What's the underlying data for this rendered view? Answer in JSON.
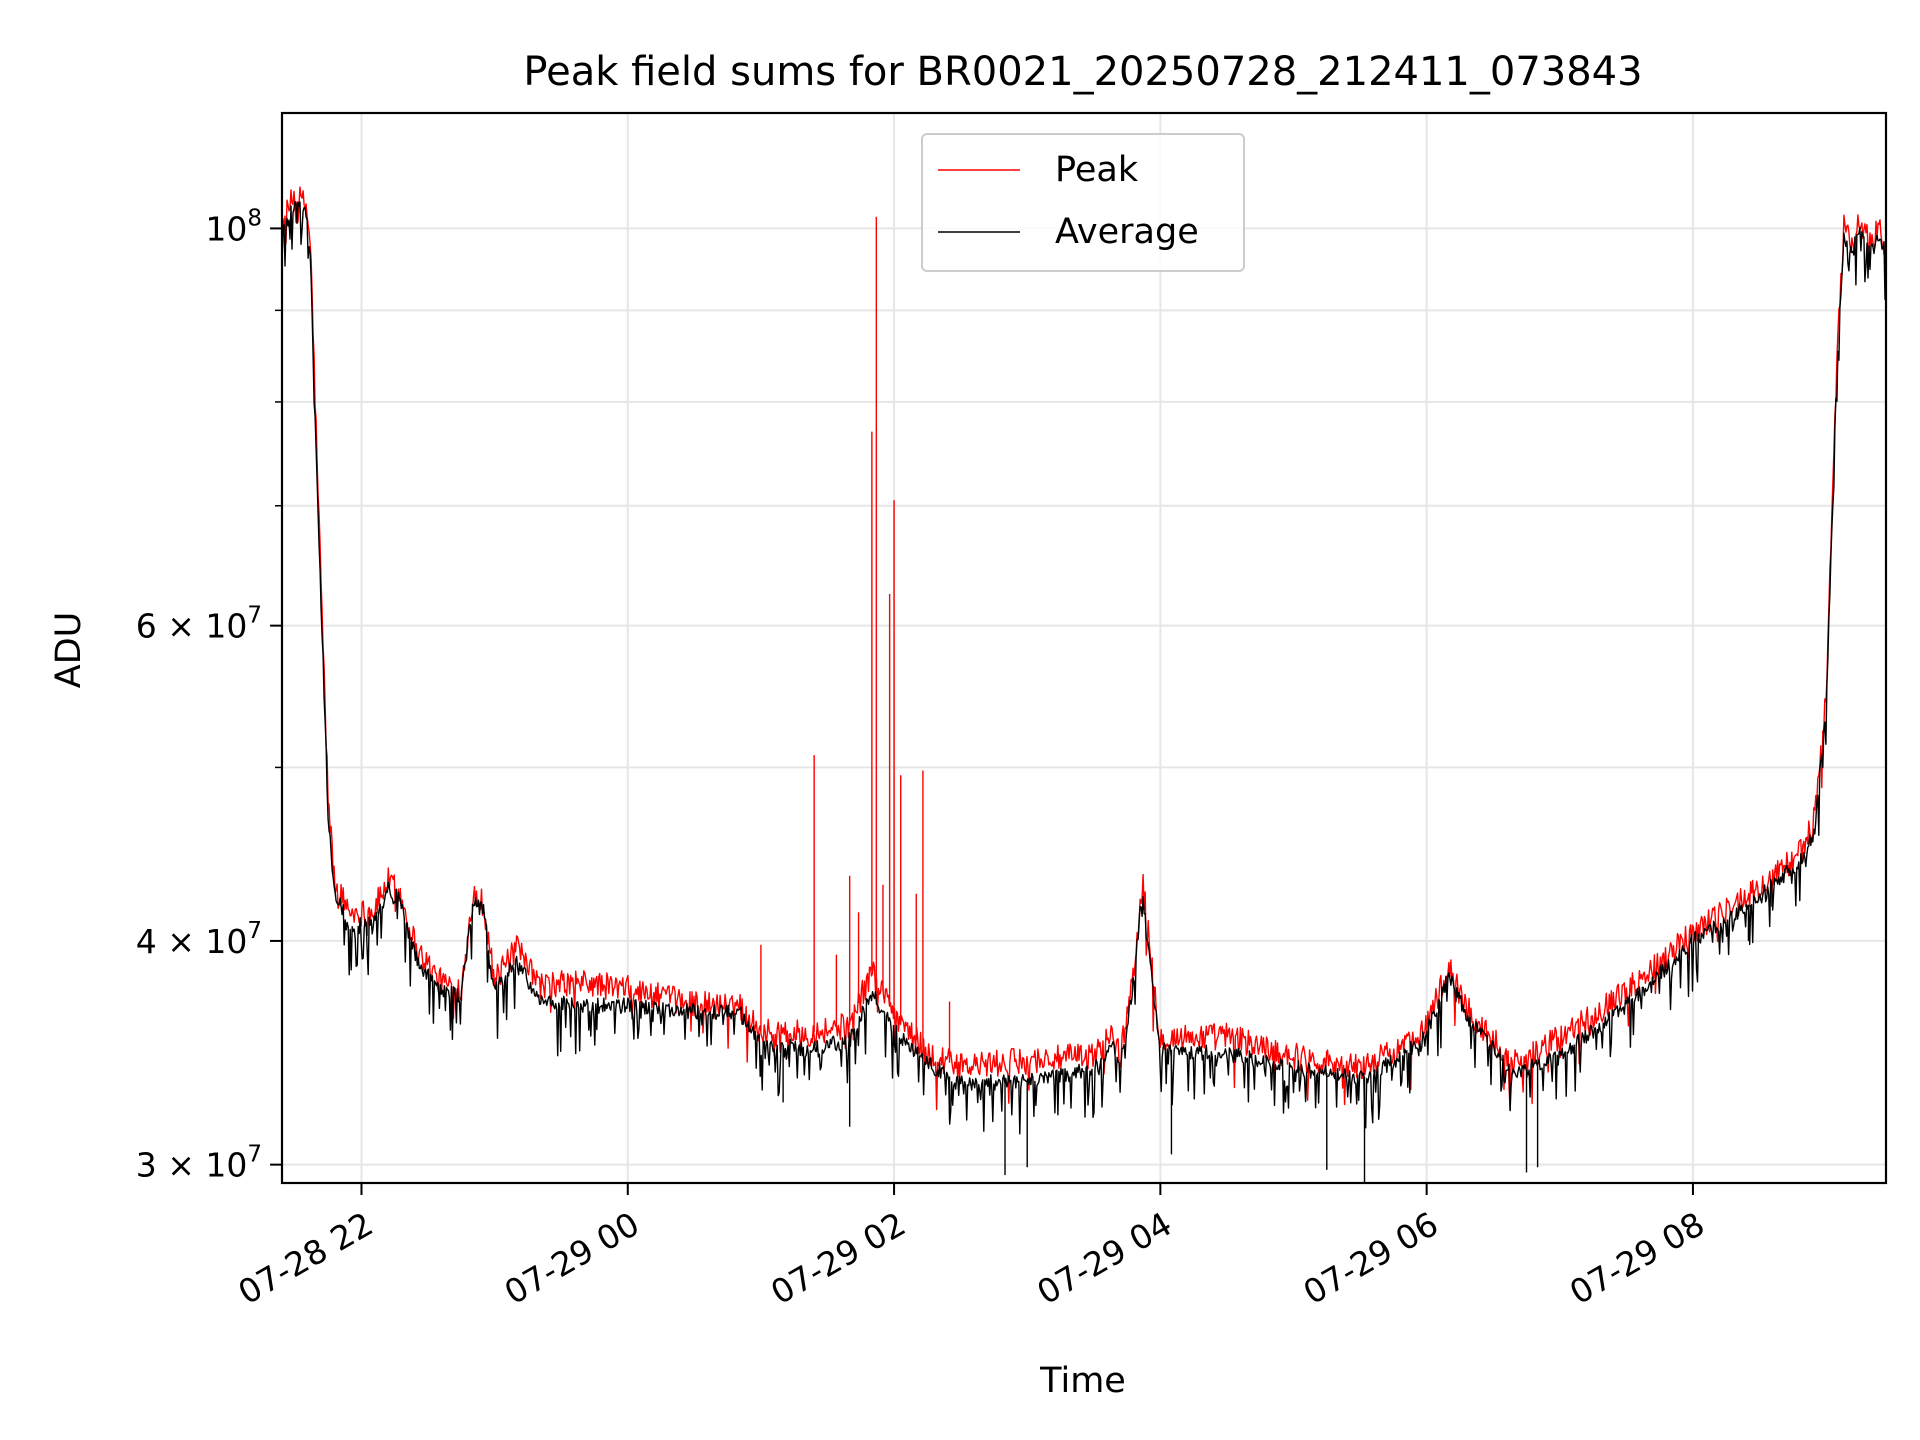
{
  "chart_data": {
    "type": "line",
    "title": "Peak field sums for BR0021_20250728_212411_073843",
    "xlabel": "Time",
    "ylabel": "ADU",
    "x_axis": "datetime",
    "x_start": "2025-07-28T21:24:11",
    "x_end": "2025-07-29T09:27:00",
    "xlim": [
      "2025-07-28T21:24:11",
      "2025-07-29T09:27:00"
    ],
    "yscale": "log",
    "ylim": [
      29300000,
      116000000
    ],
    "grid": true,
    "legend_position": "top-center",
    "x_ticks": [
      {
        "value": "2025-07-28T22:00:00",
        "label": "07-28 22"
      },
      {
        "value": "2025-07-29T00:00:00",
        "label": "07-29 00"
      },
      {
        "value": "2025-07-29T02:00:00",
        "label": "07-29 02"
      },
      {
        "value": "2025-07-29T04:00:00",
        "label": "07-29 04"
      },
      {
        "value": "2025-07-29T06:00:00",
        "label": "07-29 06"
      },
      {
        "value": "2025-07-29T08:00:00",
        "label": "07-29 08"
      }
    ],
    "y_ticks_major": [
      {
        "value": 100000000,
        "base": "10",
        "exp": "8",
        "mant": ""
      },
      {
        "value": 60000000,
        "base": "10",
        "exp": "7",
        "mant": "6"
      },
      {
        "value": 40000000,
        "base": "10",
        "exp": "7",
        "mant": "4"
      },
      {
        "value": 30000000,
        "base": "10",
        "exp": "7",
        "mant": "3"
      }
    ],
    "y_ticks_minor": [
      50000000,
      70000000,
      80000000,
      90000000
    ],
    "series": [
      {
        "name": "Peak",
        "color": "#ff0000",
        "points": [
          [
            "2025-07-28T21:24:11",
            100500000
          ],
          [
            "2025-07-28T21:30:00",
            104500000
          ],
          [
            "2025-07-28T21:35:00",
            103000000
          ],
          [
            "2025-07-28T21:37:00",
            98000000
          ],
          [
            "2025-07-28T21:40:00",
            74000000
          ],
          [
            "2025-07-28T21:45:00",
            48000000
          ],
          [
            "2025-07-28T21:48:00",
            43000000
          ],
          [
            "2025-07-28T21:55:00",
            41500000
          ],
          [
            "2025-07-28T22:05:00",
            41500000
          ],
          [
            "2025-07-28T22:12:00",
            43200000
          ],
          [
            "2025-07-28T22:17:00",
            42600000
          ],
          [
            "2025-07-28T22:25:00",
            39600000
          ],
          [
            "2025-07-28T22:35:00",
            38000000
          ],
          [
            "2025-07-28T22:45:00",
            37600000
          ],
          [
            "2025-07-28T22:50:00",
            42500000
          ],
          [
            "2025-07-28T22:55:00",
            42000000
          ],
          [
            "2025-07-28T23:00:00",
            38000000
          ],
          [
            "2025-07-28T23:10:00",
            39600000
          ],
          [
            "2025-07-28T23:20:00",
            37800000
          ],
          [
            "2025-07-28T23:40:00",
            37900000
          ],
          [
            "2025-07-29T00:00:00",
            37600000
          ],
          [
            "2025-07-29T00:20:00",
            37100000
          ],
          [
            "2025-07-29T00:40:00",
            36800000
          ],
          [
            "2025-07-29T00:50:00",
            36900000
          ],
          [
            "2025-07-29T01:00:00",
            35600000
          ],
          [
            "2025-07-29T01:20:00",
            35500000
          ],
          [
            "2025-07-29T01:40:00",
            35900000
          ],
          [
            "2025-07-29T01:50:00",
            38500000
          ],
          [
            "2025-07-29T02:00:00",
            36500000
          ],
          [
            "2025-07-29T02:15:00",
            34600000
          ],
          [
            "2025-07-29T02:30:00",
            34000000
          ],
          [
            "2025-07-29T03:00:00",
            34300000
          ],
          [
            "2025-07-29T03:30:00",
            34500000
          ],
          [
            "2025-07-29T03:38:00",
            35500000
          ],
          [
            "2025-07-29T03:42:00",
            34500000
          ],
          [
            "2025-07-29T03:48:00",
            38500000
          ],
          [
            "2025-07-29T03:52:00",
            43200000
          ],
          [
            "2025-07-29T03:56:00",
            38800000
          ],
          [
            "2025-07-29T04:00:00",
            35300000
          ],
          [
            "2025-07-29T04:30:00",
            35400000
          ],
          [
            "2025-07-29T05:00:00",
            34500000
          ],
          [
            "2025-07-29T05:30:00",
            34000000
          ],
          [
            "2025-07-29T05:50:00",
            34900000
          ],
          [
            "2025-07-29T06:00:00",
            36000000
          ],
          [
            "2025-07-29T06:10:00",
            38600000
          ],
          [
            "2025-07-29T06:20:00",
            36300000
          ],
          [
            "2025-07-29T06:40:00",
            34200000
          ],
          [
            "2025-07-29T07:00:00",
            35300000
          ],
          [
            "2025-07-29T07:30:00",
            37500000
          ],
          [
            "2025-07-29T08:00:00",
            40500000
          ],
          [
            "2025-07-29T08:30:00",
            42800000
          ],
          [
            "2025-07-29T08:50:00",
            45000000
          ],
          [
            "2025-07-29T08:55:00",
            47000000
          ],
          [
            "2025-07-29T09:00:00",
            55000000
          ],
          [
            "2025-07-29T09:05:00",
            85000000
          ],
          [
            "2025-07-29T09:08:00",
            100000000
          ],
          [
            "2025-07-29T09:12:00",
            98000000
          ],
          [
            "2025-07-29T09:15:00",
            101000000
          ],
          [
            "2025-07-29T09:20:00",
            98000000
          ],
          [
            "2025-07-29T09:24:00",
            100500000
          ],
          [
            "2025-07-29T09:27:00",
            97500000
          ]
        ],
        "spikes": [
          [
            "2025-07-29T01:00:00",
            39800000
          ],
          [
            "2025-07-29T01:24:00",
            50800000
          ],
          [
            "2025-07-29T01:34:00",
            39300000
          ],
          [
            "2025-07-29T01:40:00",
            43500000
          ],
          [
            "2025-07-29T01:44:00",
            41500000
          ],
          [
            "2025-07-29T01:50:00",
            77000000
          ],
          [
            "2025-07-29T01:52:00",
            101500000
          ],
          [
            "2025-07-29T01:55:00",
            43000000
          ],
          [
            "2025-07-29T01:58:00",
            62500000
          ],
          [
            "2025-07-29T02:00:00",
            70500000
          ],
          [
            "2025-07-29T02:03:00",
            49500000
          ],
          [
            "2025-07-29T02:10:00",
            42500000
          ],
          [
            "2025-07-29T02:13:00",
            49800000
          ],
          [
            "2025-07-29T02:25:00",
            37000000
          ]
        ]
      },
      {
        "name": "Average",
        "color": "#000000",
        "points": [
          [
            "2025-07-28T21:24:11",
            99500000
          ],
          [
            "2025-07-28T21:30:00",
            103000000
          ],
          [
            "2025-07-28T21:35:00",
            102000000
          ],
          [
            "2025-07-28T21:37:00",
            96000000
          ],
          [
            "2025-07-28T21:40:00",
            72000000
          ],
          [
            "2025-07-28T21:45:00",
            47000000
          ],
          [
            "2025-07-28T21:48:00",
            42500000
          ],
          [
            "2025-07-28T21:55:00",
            40800000
          ],
          [
            "2025-07-28T22:05:00",
            41000000
          ],
          [
            "2025-07-28T22:12:00",
            42800000
          ],
          [
            "2025-07-28T22:17:00",
            42200000
          ],
          [
            "2025-07-28T22:25:00",
            39000000
          ],
          [
            "2025-07-28T22:35:00",
            37600000
          ],
          [
            "2025-07-28T22:45:00",
            37300000
          ],
          [
            "2025-07-28T22:50:00",
            42000000
          ],
          [
            "2025-07-28T22:55:00",
            41600000
          ],
          [
            "2025-07-28T23:00:00",
            37600000
          ],
          [
            "2025-07-28T23:10:00",
            39000000
          ],
          [
            "2025-07-28T23:20:00",
            37000000
          ],
          [
            "2025-07-28T23:40:00",
            36800000
          ],
          [
            "2025-07-29T00:00:00",
            36800000
          ],
          [
            "2025-07-29T00:20:00",
            36600000
          ],
          [
            "2025-07-29T00:40:00",
            36500000
          ],
          [
            "2025-07-29T00:50:00",
            36600000
          ],
          [
            "2025-07-29T01:00:00",
            35100000
          ],
          [
            "2025-07-29T01:20:00",
            34800000
          ],
          [
            "2025-07-29T01:40:00",
            35200000
          ],
          [
            "2025-07-29T01:50:00",
            37400000
          ],
          [
            "2025-07-29T02:00:00",
            35700000
          ],
          [
            "2025-07-29T02:15:00",
            34200000
          ],
          [
            "2025-07-29T02:30:00",
            33300000
          ],
          [
            "2025-07-29T03:00:00",
            33400000
          ],
          [
            "2025-07-29T03:30:00",
            33900000
          ],
          [
            "2025-07-29T03:38:00",
            35000000
          ],
          [
            "2025-07-29T03:42:00",
            34000000
          ],
          [
            "2025-07-29T03:48:00",
            38000000
          ],
          [
            "2025-07-29T03:52:00",
            42800000
          ],
          [
            "2025-07-29T03:56:00",
            38300000
          ],
          [
            "2025-07-29T04:00:00",
            34800000
          ],
          [
            "2025-07-29T04:30:00",
            34600000
          ],
          [
            "2025-07-29T05:00:00",
            34000000
          ],
          [
            "2025-07-29T05:30:00",
            33500000
          ],
          [
            "2025-07-29T05:50:00",
            34500000
          ],
          [
            "2025-07-29T06:00:00",
            35600000
          ],
          [
            "2025-07-29T06:10:00",
            38200000
          ],
          [
            "2025-07-29T06:20:00",
            36000000
          ],
          [
            "2025-07-29T06:40:00",
            33700000
          ],
          [
            "2025-07-29T07:00:00",
            34500000
          ],
          [
            "2025-07-29T07:30:00",
            36800000
          ],
          [
            "2025-07-29T08:00:00",
            40000000
          ],
          [
            "2025-07-29T08:30:00",
            42300000
          ],
          [
            "2025-07-29T08:50:00",
            44600000
          ],
          [
            "2025-07-29T08:55:00",
            46200000
          ],
          [
            "2025-07-29T09:00:00",
            54000000
          ],
          [
            "2025-07-29T09:05:00",
            84000000
          ],
          [
            "2025-07-29T09:08:00",
            99000000
          ],
          [
            "2025-07-29T09:12:00",
            97000000
          ],
          [
            "2025-07-29T09:15:00",
            100000000
          ],
          [
            "2025-07-29T09:20:00",
            97000000
          ],
          [
            "2025-07-29T09:24:00",
            99500000
          ],
          [
            "2025-07-29T09:27:00",
            96500000
          ]
        ],
        "dips": [
          [
            "2025-07-29T01:10:00",
            32500000
          ],
          [
            "2025-07-29T01:40:00",
            31500000
          ],
          [
            "2025-07-29T02:25:00",
            31800000
          ],
          [
            "2025-07-29T02:50:00",
            29600000
          ],
          [
            "2025-07-29T03:00:00",
            29900000
          ],
          [
            "2025-07-29T04:05:00",
            30400000
          ],
          [
            "2025-07-29T05:15:00",
            29800000
          ],
          [
            "2025-07-29T05:32:00",
            29300000
          ],
          [
            "2025-07-29T06:45:00",
            29700000
          ],
          [
            "2025-07-29T06:50:00",
            29900000
          ],
          [
            "2025-07-29T08:25:00",
            40000000
          ]
        ]
      }
    ]
  }
}
